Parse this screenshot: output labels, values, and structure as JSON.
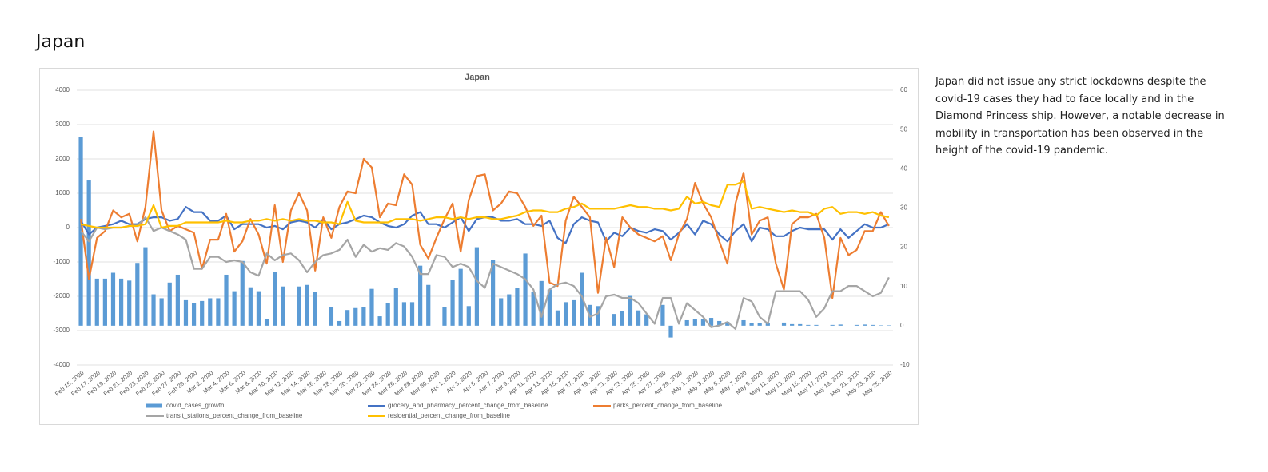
{
  "heading": "Japan",
  "description": "Japan did not issue any strict lockdowns despite the covid-19 cases they had to face locally and in the Diamond Princess ship. However, a notable decrease in mobility in transportation has been observed in the height of the covid-19 pandemic.",
  "chart_data": {
    "type": "combo",
    "title": "Japan",
    "categories": [
      "Feb 15, 2020",
      null,
      "Feb 17, 2020",
      null,
      "Feb 19, 2020",
      null,
      "Feb 21, 2020",
      null,
      "Feb 23, 2020",
      null,
      "Feb 25, 2020",
      null,
      "Feb 27, 2020",
      null,
      "Feb 29, 2020",
      null,
      "Mar 2, 2020",
      null,
      "Mar 4, 2020",
      null,
      "Mar 6, 2020",
      null,
      "Mar 8, 2020",
      null,
      "Mar 10, 2020",
      null,
      "Mar 12, 2020",
      null,
      "Mar 14, 2020",
      null,
      "Mar 16, 2020",
      null,
      "Mar 18, 2020",
      null,
      "Mar 20, 2020",
      null,
      "Mar 22, 2020",
      null,
      "Mar 24, 2020",
      null,
      "Mar 26, 2020",
      null,
      "Mar 28, 2020",
      null,
      "Mar 30, 2020",
      null,
      "Apr 1, 2020",
      null,
      "Apr 3, 2020",
      null,
      "Apr 5, 2020",
      null,
      "Apr 7, 2020",
      null,
      "Apr 9, 2020",
      null,
      "Apr 11, 2020",
      null,
      "Apr 13, 2020",
      null,
      "Apr 15, 2020",
      null,
      "Apr 17, 2020",
      null,
      "Apr 19, 2020",
      null,
      "Apr 21, 2020",
      null,
      "Apr 23, 2020",
      null,
      "Apr 25, 2020",
      null,
      "Apr 27, 2020",
      null,
      "Apr 29, 2020",
      null,
      "May 1, 2020",
      null,
      "May 3, 2020",
      null,
      "May 5, 2020",
      null,
      "May 7, 2020",
      null,
      "May 9, 2020",
      null,
      "May 11, 2020",
      null,
      "May 13, 2020",
      null,
      "May 15, 2020",
      null,
      "May 17, 2020",
      null,
      "May 19, 2020",
      null,
      "May 21, 2020",
      null,
      "May 23, 2020",
      null,
      "May 25, 2020"
    ],
    "series": [
      {
        "name": "covid_cases_growth",
        "type": "bar",
        "axis": "y2",
        "color": "#5b9bd5",
        "values": [
          48,
          37,
          12,
          12,
          13.5,
          12,
          11.5,
          16,
          20,
          8,
          7,
          11,
          13,
          6.5,
          5.7,
          6.3,
          7,
          7,
          13,
          8.8,
          16.5,
          9.8,
          8.8,
          1.8,
          13.7,
          10,
          0,
          10,
          10.4,
          8.6,
          0,
          4.7,
          1.2,
          4,
          4.5,
          4.7,
          9.4,
          2.4,
          5.7,
          9.6,
          6,
          6,
          15.3,
          10.4,
          0,
          4.7,
          11.6,
          14.5,
          5,
          20,
          0,
          16.7,
          7,
          8,
          9.6,
          18.4,
          8.6,
          11.4,
          9.2,
          3.9,
          6,
          6.5,
          13.5,
          5.3,
          5,
          0,
          3,
          3.7,
          7.6,
          3.9,
          2.9,
          0,
          5.3,
          -3,
          0,
          1.4,
          1.6,
          1.6,
          2,
          1.2,
          1,
          0,
          1.4,
          0.6,
          0.6,
          0.8,
          0,
          0.8,
          0.4,
          0.4,
          0.2,
          0.2,
          0,
          0.2,
          0.3,
          0,
          0.2,
          0.3,
          0.2,
          0.1,
          0.1
        ]
      },
      {
        "name": "grocery_and_pharmacy_percent_change_from_baseline",
        "type": "line",
        "color": "#4472c4",
        "values": [
          200,
          -200,
          0,
          50,
          100,
          200,
          100,
          100,
          250,
          300,
          300,
          200,
          250,
          600,
          450,
          450,
          200,
          200,
          350,
          -50,
          100,
          100,
          100,
          0,
          50,
          -50,
          150,
          200,
          150,
          0,
          250,
          -50,
          100,
          150,
          250,
          350,
          300,
          150,
          50,
          0,
          100,
          350,
          450,
          100,
          100,
          0,
          150,
          300,
          -100,
          250,
          300,
          300,
          200,
          200,
          250,
          100,
          100,
          50,
          200,
          -300,
          -450,
          100,
          300,
          200,
          150,
          -400,
          -150,
          -250,
          0,
          -100,
          -150,
          -50,
          -100,
          -350,
          -150,
          100,
          -200,
          200,
          100,
          -200,
          -400,
          -100,
          100,
          -400,
          0,
          -50,
          -250,
          -250,
          -100,
          0,
          -50,
          -50,
          -50,
          -350,
          -50,
          -300,
          -100,
          100,
          0,
          0,
          100
        ]
      },
      {
        "name": "parks_percent_change_from_baseline",
        "type": "line",
        "color": "#ed7d31",
        "values": [
          250,
          -1500,
          -300,
          -100,
          500,
          300,
          400,
          -400,
          600,
          2800,
          500,
          -100,
          50,
          -50,
          -150,
          -1200,
          -350,
          -350,
          400,
          -700,
          -400,
          250,
          -200,
          -1050,
          650,
          -1000,
          500,
          1000,
          500,
          -1250,
          300,
          -300,
          600,
          1050,
          1000,
          2000,
          1750,
          300,
          700,
          650,
          1550,
          1250,
          -500,
          -900,
          -300,
          250,
          700,
          -700,
          800,
          1500,
          1550,
          500,
          700,
          1050,
          1000,
          600,
          50,
          350,
          -1600,
          -1700,
          200,
          900,
          600,
          300,
          -1900,
          -300,
          -1150,
          300,
          0,
          -200,
          -300,
          -400,
          -250,
          -950,
          -200,
          250,
          1300,
          700,
          300,
          -400,
          -1050,
          700,
          1600,
          -200,
          200,
          300,
          -1050,
          -1800,
          100,
          300,
          300,
          400,
          -300,
          -2050,
          -300,
          -800,
          -650,
          -100,
          -100,
          450,
          50
        ]
      },
      {
        "name": "transit_stations_percent_change_from_baseline",
        "type": "line",
        "color": "#a5a5a5",
        "values": [
          -100,
          -400,
          0,
          -50,
          0,
          0,
          50,
          50,
          300,
          -100,
          0,
          -100,
          -200,
          -350,
          -1200,
          -1200,
          -850,
          -850,
          -1000,
          -950,
          -1000,
          -1300,
          -1400,
          -750,
          -950,
          -800,
          -750,
          -950,
          -1300,
          -1000,
          -800,
          -750,
          -650,
          -350,
          -850,
          -500,
          -700,
          -600,
          -650,
          -450,
          -550,
          -850,
          -1350,
          -1350,
          -800,
          -850,
          -1150,
          -1050,
          -1150,
          -1550,
          -1750,
          -1050,
          -1150,
          -1250,
          -1350,
          -1500,
          -1800,
          -2600,
          -1800,
          -1650,
          -1600,
          -1700,
          -2000,
          -2600,
          -2500,
          -2000,
          -1950,
          -2050,
          -2050,
          -2200,
          -2500,
          -2800,
          -2050,
          -2050,
          -2800,
          -2200,
          -2400,
          -2600,
          -2900,
          -2850,
          -2750,
          -2950,
          -2050,
          -2150,
          -2600,
          -2800,
          -1850,
          -1850,
          -1850,
          -1850,
          -2100,
          -2600,
          -2350,
          -1850,
          -1850,
          -1700,
          -1700,
          -1850,
          -2000,
          -1900,
          -1450
        ]
      },
      {
        "name": "residential_percent_change_from_baseline",
        "type": "line",
        "color": "#ffc000",
        "values": [
          100,
          50,
          0,
          0,
          0,
          0,
          50,
          50,
          100,
          650,
          0,
          50,
          50,
          150,
          150,
          150,
          150,
          150,
          200,
          150,
          150,
          200,
          200,
          250,
          200,
          250,
          200,
          250,
          200,
          200,
          150,
          150,
          100,
          750,
          200,
          150,
          150,
          150,
          150,
          250,
          250,
          250,
          200,
          250,
          300,
          300,
          250,
          300,
          250,
          300,
          300,
          250,
          250,
          300,
          350,
          450,
          500,
          500,
          450,
          450,
          550,
          600,
          700,
          550,
          550,
          550,
          550,
          600,
          650,
          600,
          600,
          550,
          550,
          500,
          550,
          900,
          700,
          750,
          650,
          600,
          1250,
          1250,
          1350,
          550,
          600,
          550,
          500,
          450,
          500,
          450,
          450,
          350,
          550,
          600,
          400,
          450,
          450,
          400,
          450,
          350,
          300
        ]
      }
    ],
    "ylim": [
      -4000,
      4000
    ],
    "yticks": [
      -4000,
      -3000,
      -2000,
      -1000,
      0,
      1000,
      2000,
      3000,
      4000
    ],
    "y2lim": [
      -10,
      60
    ],
    "y2ticks": [
      -10,
      0,
      10,
      20,
      30,
      40,
      50,
      60
    ],
    "grid": true,
    "legend": "bottom"
  }
}
